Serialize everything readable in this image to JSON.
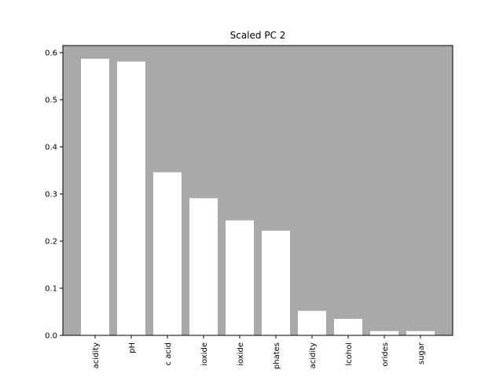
{
  "chart_data": {
    "type": "bar",
    "title": "Scaled PC 2",
    "xlabel": "",
    "ylabel": "",
    "categories": [
      "acidity",
      "pH",
      "c acid",
      "ioxide",
      "ioxide",
      "phates",
      "acidity",
      "lcohol",
      "orides",
      "sugar"
    ],
    "values": [
      0.587,
      0.581,
      0.346,
      0.291,
      0.244,
      0.222,
      0.052,
      0.035,
      0.009,
      0.009
    ],
    "ylim": [
      0,
      0.615
    ],
    "yticks": [
      "0.0",
      "0.1",
      "0.2",
      "0.3",
      "0.4",
      "0.5",
      "0.6"
    ],
    "grid": false,
    "legend": "none",
    "colors": {
      "plot_background": "#a9a9a9",
      "bar": "#ffffff",
      "axis": "#000000"
    }
  }
}
